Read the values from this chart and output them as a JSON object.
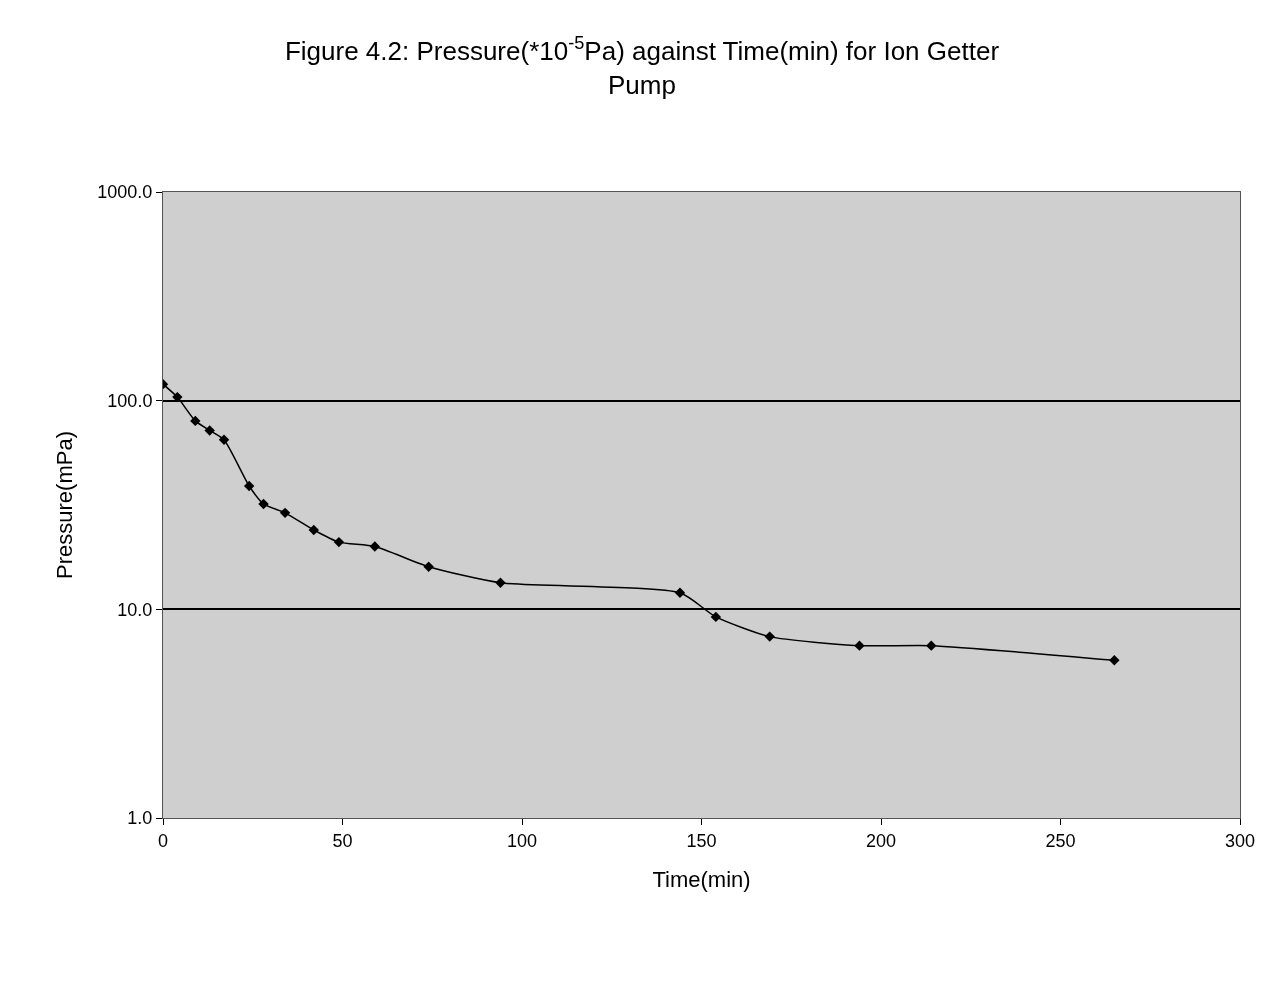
{
  "chart_data": {
    "type": "line",
    "title": "Figure 4.2: Pressure(*10$^{-5}$Pa) against Time(min) for Ion Getter Pump",
    "xlabel": "Time(min)",
    "ylabel": "Pressure(mPa)",
    "x": [
      0,
      4,
      9,
      13,
      17,
      24,
      28,
      34,
      42,
      49,
      59,
      74,
      94,
      144,
      154,
      169,
      194,
      214,
      265
    ],
    "series": [
      {
        "color": "#000000",
        "values": [
          120,
          104,
          80,
          72,
          65,
          39,
          32,
          29,
          24,
          21,
          20,
          16,
          13.4,
          12,
          9.2,
          7.4,
          6.7,
          6.7,
          5.7
        ]
      }
    ],
    "log": "y",
    "xlim": [
      0,
      300
    ],
    "xticks": [
      0,
      50,
      100,
      150,
      200,
      250,
      300
    ],
    "ylim": [
      1,
      1000
    ],
    "yticks": [
      {
        "value": 1,
        "label": "1.0"
      },
      {
        "value": 10,
        "label": "10.0"
      },
      {
        "value": 100,
        "label": "100.0"
      },
      {
        "value": 1000,
        "label": "1000.0"
      }
    ],
    "grid": "y",
    "legend": false,
    "marker": "diamond",
    "line_style": "solid"
  }
}
